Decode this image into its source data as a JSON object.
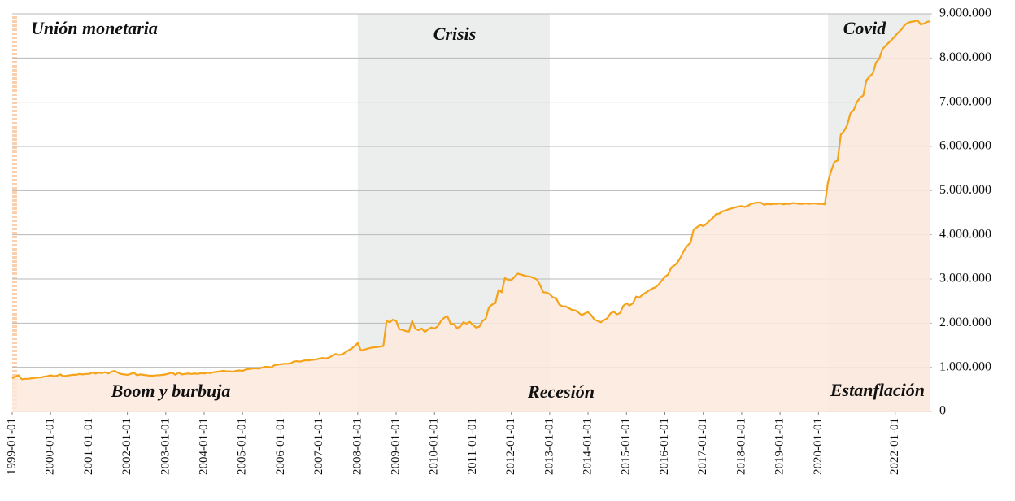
{
  "chart_data": {
    "type": "area",
    "annotations": [
      "Unión monetaria",
      "Boom y burbuja",
      "Crisis",
      "Recesión",
      "Covid",
      "Estanflación"
    ],
    "shaded_periods": [
      {
        "start": "2008-01-01",
        "end": "2013-01-01",
        "color": "#eceeed"
      },
      {
        "start": "2020-04-01",
        "end": "2022-12-01",
        "color": "#eceeed"
      }
    ],
    "x": [
      "1999-01-01",
      "1999-02-01",
      "1999-03-01",
      "1999-04-01",
      "1999-05-01",
      "1999-06-01",
      "1999-07-01",
      "1999-08-01",
      "1999-09-01",
      "1999-10-01",
      "1999-11-01",
      "1999-12-01",
      "2000-01-01",
      "2000-02-01",
      "2000-03-01",
      "2000-04-01",
      "2000-05-01",
      "2000-06-01",
      "2000-07-01",
      "2000-08-01",
      "2000-09-01",
      "2000-10-01",
      "2000-11-01",
      "2000-12-01",
      "2001-01-01",
      "2001-02-01",
      "2001-03-01",
      "2001-04-01",
      "2001-05-01",
      "2001-06-01",
      "2001-07-01",
      "2001-08-01",
      "2001-09-01",
      "2001-10-01",
      "2001-11-01",
      "2001-12-01",
      "2002-01-01",
      "2002-02-01",
      "2002-03-01",
      "2002-04-01",
      "2002-05-01",
      "2002-06-01",
      "2002-07-01",
      "2002-08-01",
      "2002-09-01",
      "2002-10-01",
      "2002-11-01",
      "2002-12-01",
      "2003-01-01",
      "2003-02-01",
      "2003-03-01",
      "2003-04-01",
      "2003-05-01",
      "2003-06-01",
      "2003-07-01",
      "2003-08-01",
      "2003-09-01",
      "2003-10-01",
      "2003-11-01",
      "2003-12-01",
      "2004-01-01",
      "2004-02-01",
      "2004-03-01",
      "2004-04-01",
      "2004-05-01",
      "2004-06-01",
      "2004-07-01",
      "2004-08-01",
      "2004-09-01",
      "2004-10-01",
      "2004-11-01",
      "2004-12-01",
      "2005-01-01",
      "2005-02-01",
      "2005-03-01",
      "2005-04-01",
      "2005-05-01",
      "2005-06-01",
      "2005-07-01",
      "2005-08-01",
      "2005-09-01",
      "2005-10-01",
      "2005-11-01",
      "2005-12-01",
      "2006-01-01",
      "2006-02-01",
      "2006-03-01",
      "2006-04-01",
      "2006-05-01",
      "2006-06-01",
      "2006-07-01",
      "2006-08-01",
      "2006-09-01",
      "2006-10-01",
      "2006-11-01",
      "2006-12-01",
      "2007-01-01",
      "2007-02-01",
      "2007-03-01",
      "2007-04-01",
      "2007-05-01",
      "2007-06-01",
      "2007-07-01",
      "2007-08-01",
      "2007-09-01",
      "2007-10-01",
      "2007-11-01",
      "2007-12-01",
      "2008-01-01",
      "2008-02-01",
      "2008-03-01",
      "2008-04-01",
      "2008-05-01",
      "2008-06-01",
      "2008-07-01",
      "2008-08-01",
      "2008-09-01",
      "2008-10-01",
      "2008-11-01",
      "2008-12-01",
      "2009-01-01",
      "2009-02-01",
      "2009-03-01",
      "2009-04-01",
      "2009-05-01",
      "2009-06-01",
      "2009-07-01",
      "2009-08-01",
      "2009-09-01",
      "2009-10-01",
      "2009-11-01",
      "2009-12-01",
      "2010-01-01",
      "2010-02-01",
      "2010-03-01",
      "2010-04-01",
      "2010-05-01",
      "2010-06-01",
      "2010-07-01",
      "2010-08-01",
      "2010-09-01",
      "2010-10-01",
      "2010-11-01",
      "2010-12-01",
      "2011-01-01",
      "2011-02-01",
      "2011-03-01",
      "2011-04-01",
      "2011-05-01",
      "2011-06-01",
      "2011-07-01",
      "2011-08-01",
      "2011-09-01",
      "2011-10-01",
      "2011-11-01",
      "2011-12-01",
      "2012-01-01",
      "2012-02-01",
      "2012-03-01",
      "2012-04-01",
      "2012-05-01",
      "2012-06-01",
      "2012-07-01",
      "2012-08-01",
      "2012-09-01",
      "2012-10-01",
      "2012-11-01",
      "2012-12-01",
      "2013-01-01",
      "2013-02-01",
      "2013-03-01",
      "2013-04-01",
      "2013-05-01",
      "2013-06-01",
      "2013-07-01",
      "2013-08-01",
      "2013-09-01",
      "2013-10-01",
      "2013-11-01",
      "2013-12-01",
      "2014-01-01",
      "2014-02-01",
      "2014-03-01",
      "2014-04-01",
      "2014-05-01",
      "2014-06-01",
      "2014-07-01",
      "2014-08-01",
      "2014-09-01",
      "2014-10-01",
      "2014-11-01",
      "2014-12-01",
      "2015-01-01",
      "2015-02-01",
      "2015-03-01",
      "2015-04-01",
      "2015-05-01",
      "2015-06-01",
      "2015-07-01",
      "2015-08-01",
      "2015-09-01",
      "2015-10-01",
      "2015-11-01",
      "2015-12-01",
      "2016-01-01",
      "2016-02-01",
      "2016-03-01",
      "2016-04-01",
      "2016-05-01",
      "2016-06-01",
      "2016-07-01",
      "2016-08-01",
      "2016-09-01",
      "2016-10-01",
      "2016-11-01",
      "2016-12-01",
      "2017-01-01",
      "2017-02-01",
      "2017-03-01",
      "2017-04-01",
      "2017-05-01",
      "2017-06-01",
      "2017-07-01",
      "2017-08-01",
      "2017-09-01",
      "2017-10-01",
      "2017-11-01",
      "2017-12-01",
      "2018-01-01",
      "2018-02-01",
      "2018-03-01",
      "2018-04-01",
      "2018-05-01",
      "2018-06-01",
      "2018-07-01",
      "2018-08-01",
      "2018-09-01",
      "2018-10-01",
      "2018-11-01",
      "2018-12-01",
      "2019-01-01",
      "2019-02-01",
      "2019-03-01",
      "2019-04-01",
      "2019-05-01",
      "2019-06-01",
      "2019-07-01",
      "2019-08-01",
      "2019-09-01",
      "2019-10-01",
      "2019-11-01",
      "2019-12-01",
      "2020-01-01",
      "2020-02-01",
      "2020-03-01",
      "2020-04-01",
      "2020-05-01",
      "2020-06-01",
      "2020-07-01",
      "2020-08-01",
      "2020-09-01",
      "2020-10-01",
      "2020-11-01",
      "2020-12-01",
      "2021-01-01",
      "2021-02-01",
      "2021-03-01",
      "2021-04-01",
      "2021-05-01",
      "2021-06-01",
      "2021-07-01",
      "2021-08-01",
      "2021-09-01",
      "2021-10-01",
      "2021-11-01",
      "2021-12-01",
      "2022-01-01",
      "2022-02-01",
      "2022-03-01",
      "2022-04-01",
      "2022-05-01",
      "2022-06-01",
      "2022-07-01",
      "2022-08-01",
      "2022-09-01",
      "2022-10-01",
      "2022-11-01",
      "2022-12-01"
    ],
    "series": [
      {
        "color": "#f5a31a",
        "fill_color": "#fde9dd",
        "values": [
          750000,
          790000,
          820000,
          730000,
          740000,
          740000,
          750000,
          760000,
          770000,
          770000,
          790000,
          800000,
          820000,
          800000,
          810000,
          840000,
          800000,
          810000,
          820000,
          830000,
          830000,
          850000,
          840000,
          850000,
          850000,
          880000,
          860000,
          880000,
          870000,
          890000,
          860000,
          900000,
          920000,
          880000,
          850000,
          840000,
          830000,
          850000,
          880000,
          820000,
          840000,
          830000,
          820000,
          810000,
          810000,
          820000,
          820000,
          830000,
          840000,
          860000,
          880000,
          830000,
          880000,
          840000,
          850000,
          860000,
          850000,
          860000,
          850000,
          870000,
          860000,
          880000,
          870000,
          890000,
          900000,
          910000,
          920000,
          910000,
          910000,
          900000,
          920000,
          930000,
          920000,
          950000,
          960000,
          970000,
          980000,
          970000,
          990000,
          1010000,
          1010000,
          1000000,
          1050000,
          1060000,
          1070000,
          1080000,
          1080000,
          1090000,
          1130000,
          1140000,
          1130000,
          1150000,
          1160000,
          1160000,
          1170000,
          1180000,
          1200000,
          1210000,
          1200000,
          1220000,
          1260000,
          1300000,
          1280000,
          1290000,
          1330000,
          1380000,
          1420000,
          1480000,
          1550000,
          1380000,
          1400000,
          1420000,
          1440000,
          1450000,
          1460000,
          1470000,
          1480000,
          2050000,
          2020000,
          2080000,
          2050000,
          1860000,
          1850000,
          1820000,
          1810000,
          2050000,
          1870000,
          1840000,
          1880000,
          1800000,
          1860000,
          1900000,
          1880000,
          1930000,
          2050000,
          2120000,
          2160000,
          1990000,
          1980000,
          1890000,
          1920000,
          2020000,
          1990000,
          2030000,
          1960000,
          1900000,
          1920000,
          2050000,
          2100000,
          2360000,
          2420000,
          2450000,
          2750000,
          2700000,
          3020000,
          2980000,
          2970000,
          3050000,
          3120000,
          3100000,
          3080000,
          3060000,
          3050000,
          3020000,
          2990000,
          2860000,
          2700000,
          2690000,
          2660000,
          2580000,
          2570000,
          2420000,
          2380000,
          2380000,
          2340000,
          2300000,
          2290000,
          2240000,
          2180000,
          2220000,
          2250000,
          2180000,
          2080000,
          2050000,
          2020000,
          2070000,
          2110000,
          2220000,
          2260000,
          2200000,
          2230000,
          2390000,
          2450000,
          2400000,
          2450000,
          2600000,
          2580000,
          2640000,
          2690000,
          2740000,
          2780000,
          2810000,
          2870000,
          2960000,
          3050000,
          3100000,
          3260000,
          3310000,
          3380000,
          3500000,
          3650000,
          3750000,
          3820000,
          4120000,
          4170000,
          4220000,
          4200000,
          4250000,
          4320000,
          4380000,
          4470000,
          4480000,
          4530000,
          4550000,
          4580000,
          4600000,
          4620000,
          4640000,
          4650000,
          4630000,
          4660000,
          4700000,
          4720000,
          4730000,
          4730000,
          4680000,
          4700000,
          4690000,
          4700000,
          4700000,
          4710000,
          4690000,
          4700000,
          4700000,
          4720000,
          4710000,
          4700000,
          4700000,
          4710000,
          4700000,
          4710000,
          4710000,
          4700000,
          4700000,
          4690000,
          5200000,
          5450000,
          5650000,
          5680000,
          6270000,
          6350000,
          6480000,
          6750000,
          6820000,
          7000000,
          7100000,
          7150000,
          7500000,
          7580000,
          7650000,
          7900000,
          7980000,
          8200000,
          8280000,
          8350000,
          8420000,
          8500000,
          8580000,
          8650000,
          8750000,
          8800000,
          8820000,
          8830000,
          8850000,
          8760000,
          8780000,
          8820000,
          8830000
        ]
      }
    ],
    "xlim": [
      "1999-01-01",
      "2022-12-01"
    ],
    "xticks": [
      "1999-01-01",
      "2000-01-01",
      "2001-01-01",
      "2002-01-01",
      "2003-01-01",
      "2004-01-01",
      "2005-01-01",
      "2006-01-01",
      "2007-01-01",
      "2008-01-01",
      "2009-01-01",
      "2010-01-01",
      "2011-01-01",
      "2012-01-01",
      "2013-01-01",
      "2014-01-01",
      "2015-01-01",
      "2016-01-01",
      "2017-01-01",
      "2018-01-01",
      "2019-01-01",
      "2020-01-01",
      "2022-01-01"
    ],
    "ylim": [
      0,
      9000000
    ],
    "yticks": [
      0,
      {
        "value": 1000000,
        "label": "1.000.000"
      },
      {
        "value": 2000000,
        "label": "2.000.000"
      },
      {
        "value": 3000000,
        "label": "3.000.000"
      },
      {
        "value": 4000000,
        "label": "4.000.000"
      },
      {
        "value": 5000000,
        "label": "5.000.000"
      },
      {
        "value": 6000000,
        "label": "6.000.000"
      },
      {
        "value": 7000000,
        "label": "7.000.000"
      },
      {
        "value": 8000000,
        "label": "8.000.000"
      },
      {
        "value": 9000000,
        "label": "9.000.000"
      }
    ],
    "grid": true
  }
}
